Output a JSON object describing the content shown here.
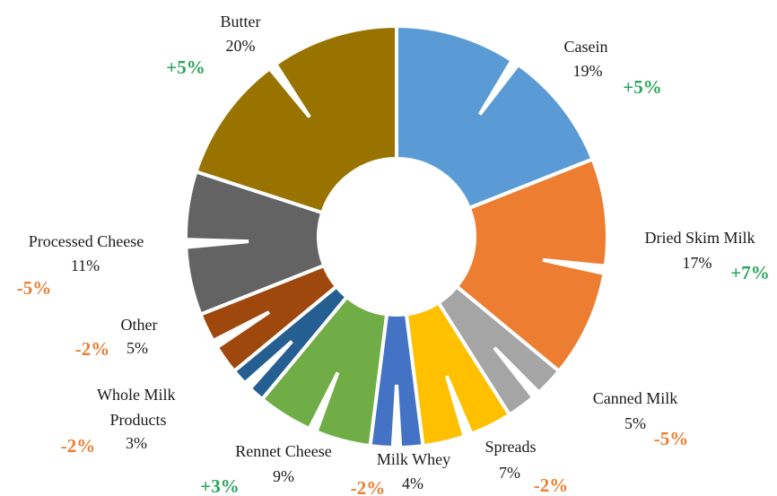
{
  "chart_data": {
    "type": "pie",
    "variant": "donut",
    "title": "",
    "slices": [
      {
        "label": "Casein",
        "percent_label": "19%",
        "value": 19,
        "change": "+5%",
        "color": "#5b9bd5",
        "change_color": "#2aa55a"
      },
      {
        "label": "Dried Skim Milk",
        "percent_label": "17%",
        "value": 17,
        "change": "+7%",
        "color": "#ed7d31",
        "change_color": "#2aa55a"
      },
      {
        "label": "Canned Milk",
        "percent_label": "5%",
        "value": 5,
        "change": "-5%",
        "color": "#a5a5a5",
        "change_color": "#ed7d31"
      },
      {
        "label": "Spreads",
        "percent_label": "7%",
        "value": 7,
        "change": "-2%",
        "color": "#ffc000",
        "change_color": "#ed7d31"
      },
      {
        "label": "Milk Whey",
        "percent_label": "4%",
        "value": 4,
        "change": "-2%",
        "color": "#4472c4",
        "change_color": "#ed7d31"
      },
      {
        "label": "Rennet Cheese",
        "percent_label": "9%",
        "value": 9,
        "change": "+3%",
        "color": "#70ad47",
        "change_color": "#2aa55a"
      },
      {
        "label": "Whole Milk Products",
        "percent_label": "3%",
        "value": 3,
        "change": "-2%",
        "color": "#255e91",
        "change_color": "#ed7d31"
      },
      {
        "label": "Other",
        "percent_label": "5%",
        "value": 5,
        "change": "-2%",
        "color": "#9e480e",
        "change_color": "#ed7d31"
      },
      {
        "label": "Processed Cheese",
        "percent_label": "11%",
        "value": 11,
        "change": "-5%",
        "color": "#636363",
        "change_color": "#ed7d31"
      },
      {
        "label": "Butter",
        "percent_label": "20%",
        "value": 20,
        "change": "+5%",
        "color": "#997300",
        "change_color": "#2aa55a"
      }
    ]
  }
}
